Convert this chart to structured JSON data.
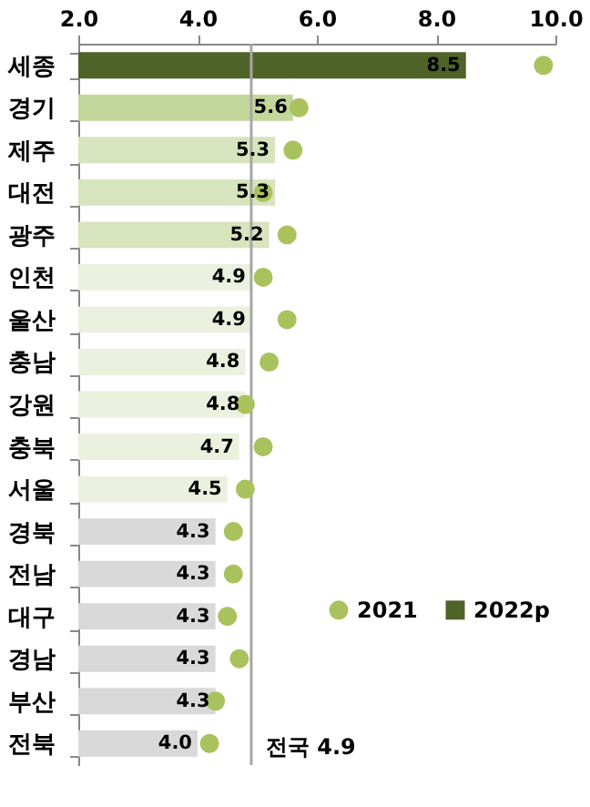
{
  "chart_data": {
    "type": "bar",
    "orientation": "horizontal",
    "categories": [
      "세종",
      "경기",
      "제주",
      "대전",
      "광주",
      "인천",
      "울산",
      "충남",
      "강원",
      "충북",
      "서울",
      "경북",
      "전남",
      "대구",
      "경남",
      "부산",
      "전북"
    ],
    "series": [
      {
        "name": "2021",
        "type": "scatter",
        "color": "#a9c25d",
        "values": [
          9.8,
          5.7,
          5.6,
          5.1,
          5.5,
          5.1,
          5.5,
          5.2,
          4.8,
          5.1,
          4.8,
          4.6,
          4.6,
          4.5,
          4.7,
          4.3,
          4.2
        ]
      },
      {
        "name": "2022p",
        "value_labels": [
          "8.5",
          "5.6",
          "5.3",
          "5.3",
          "5.2",
          "4.9",
          "4.9",
          "4.8",
          "4.8",
          "4.7",
          "4.5",
          "4.3",
          "4.3",
          "4.3",
          "4.3",
          "4.3",
          "4.0"
        ],
        "colors": [
          "#4f6228",
          "#c3d69b",
          "#d7e4bd",
          "#d7e4bd",
          "#d7e4bd",
          "#ebf1de",
          "#ebf1de",
          "#ebf1de",
          "#ebf1de",
          "#ebf1de",
          "#ebf1de",
          "#d9d9d9",
          "#d9d9d9",
          "#d9d9d9",
          "#d9d9d9",
          "#d9d9d9",
          "#d9d9d9"
        ],
        "color": "#4f6228",
        "values": [
          8.5,
          5.6,
          5.3,
          5.3,
          5.2,
          4.9,
          4.9,
          4.8,
          4.8,
          4.7,
          4.5,
          4.3,
          4.3,
          4.3,
          4.3,
          4.3,
          4.0
        ]
      }
    ],
    "marker": "circle",
    "xlim": [
      2.0,
      10.0
    ],
    "xticks": [
      {
        "value": 2,
        "label": "2.0"
      },
      {
        "value": 4,
        "label": "4.0"
      },
      {
        "value": 6,
        "label": "6.0"
      },
      {
        "value": 8,
        "label": "8.0"
      },
      {
        "value": 10,
        "label": "10.0"
      }
    ],
    "ref_lines": [
      {
        "axis": "x",
        "value": 4.9,
        "label": "전국 4.9",
        "color": "#a6a6a6"
      }
    ],
    "legend": "bottom right",
    "grid": false
  }
}
